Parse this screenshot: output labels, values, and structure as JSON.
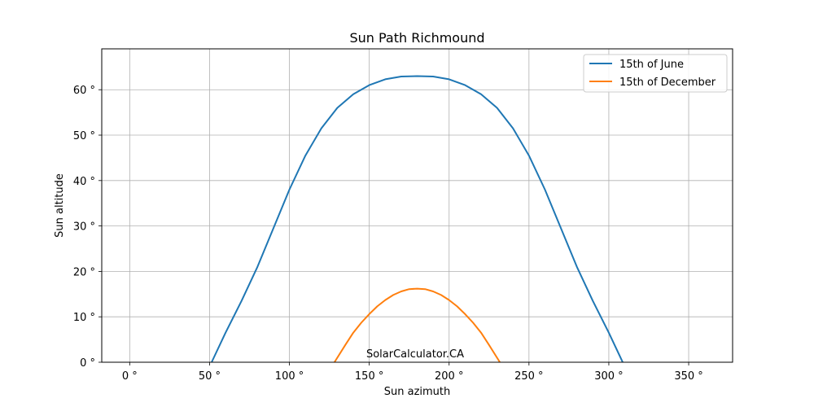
{
  "chart_data": {
    "type": "line",
    "title": "Sun Path Richmound",
    "xlabel": "Sun azimuth",
    "ylabel": "Sun altitude",
    "xlim": [
      -17.5,
      377.5
    ],
    "ylim": [
      0,
      69
    ],
    "x_ticks": [
      0,
      50,
      100,
      150,
      200,
      250,
      300,
      350
    ],
    "y_ticks": [
      0,
      10,
      20,
      30,
      40,
      50,
      60
    ],
    "x_tick_labels": [
      "0 °",
      "50 °",
      "100 °",
      "150 °",
      "200 °",
      "250 °",
      "300 °",
      "350 °"
    ],
    "y_tick_labels": [
      "0 °",
      "10 °",
      "20 °",
      "30 °",
      "40 °",
      "50 °",
      "60 °"
    ],
    "grid": true,
    "legend_position": "top-right",
    "annotation": "SolarCalculator.CA",
    "series": [
      {
        "name": "15th of June",
        "color": "#1f77b4",
        "x": [
          51.3,
          60,
          70,
          80,
          90,
          100,
          110,
          120,
          130,
          140,
          150,
          160,
          170,
          180,
          190,
          200,
          210,
          220,
          230,
          240,
          250,
          260,
          270,
          280,
          290,
          300,
          308.7
        ],
        "y": [
          0,
          6.5,
          13.5,
          21,
          29.5,
          38,
          45.5,
          51.5,
          56,
          59,
          61,
          62.3,
          62.9,
          63,
          62.9,
          62.3,
          61,
          59,
          56,
          51.5,
          45.5,
          38,
          29.5,
          21,
          13.5,
          6.5,
          0
        ]
      },
      {
        "name": "15th of December",
        "color": "#ff7f0e",
        "x": [
          128.2,
          135,
          140,
          145,
          150,
          155,
          160,
          165,
          170,
          175,
          180,
          185,
          190,
          195,
          200,
          205,
          210,
          215,
          220,
          225,
          231.8
        ],
        "y": [
          0,
          3.8,
          6.5,
          8.7,
          10.6,
          12.3,
          13.7,
          14.8,
          15.6,
          16.1,
          16.2,
          16.1,
          15.6,
          14.8,
          13.7,
          12.3,
          10.6,
          8.7,
          6.5,
          3.8,
          0
        ]
      }
    ]
  }
}
